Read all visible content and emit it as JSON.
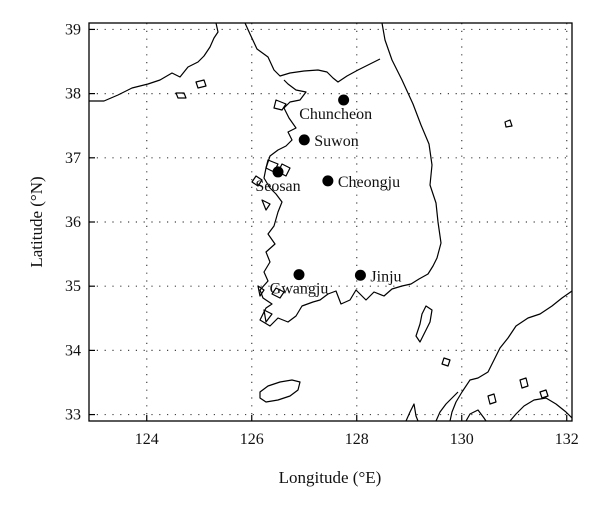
{
  "map": {
    "x_axis": {
      "label": "Longitude (°E)",
      "range": [
        122.9,
        132.1
      ],
      "ticks": [
        124,
        126,
        128,
        130,
        132
      ],
      "tick_labels": [
        "124",
        "126",
        "128",
        "130",
        "132"
      ]
    },
    "y_axis": {
      "label": "Latitude (°N)",
      "range": [
        32.9,
        39.1
      ],
      "ticks": [
        33,
        34,
        35,
        36,
        37,
        38,
        39
      ],
      "tick_labels": [
        "33",
        "34",
        "35",
        "36",
        "37",
        "38",
        "39"
      ]
    },
    "grid": "dotted",
    "stations": [
      {
        "name": "Chuncheon",
        "lon": 127.75,
        "lat": 37.9,
        "label_pos": "below-left"
      },
      {
        "name": "Suwon",
        "lon": 127.0,
        "lat": 37.28,
        "label_pos": "right"
      },
      {
        "name": "Seosan",
        "lon": 126.5,
        "lat": 36.78,
        "label_pos": "below"
      },
      {
        "name": "Cheongju",
        "lon": 127.45,
        "lat": 36.64,
        "label_pos": "right"
      },
      {
        "name": "Gwangju",
        "lon": 126.9,
        "lat": 35.18,
        "label_pos": "below"
      },
      {
        "name": "Jinju",
        "lon": 128.07,
        "lat": 35.17,
        "label_pos": "right"
      }
    ]
  }
}
